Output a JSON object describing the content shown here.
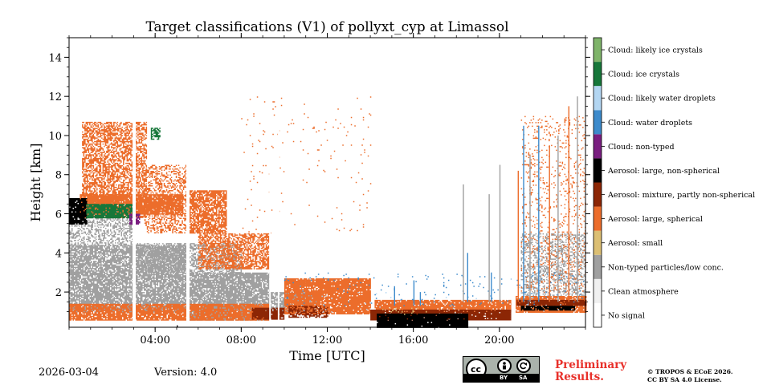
{
  "figure": {
    "title": "Target classifications (V1) of pollyxt_cyp at Limassol",
    "date": "2026-03-04",
    "version_label": "Version: 4.0",
    "preliminary_text": "Preliminary Results.",
    "copyright_lines": [
      "© TROPOS & ECoE 2026.",
      "CC BY SA 4.0 License."
    ],
    "license_badge": {
      "icons": [
        "cc-icon",
        "by-icon",
        "sa-icon"
      ],
      "cc_text": "cc",
      "labels": [
        "BY",
        "SA"
      ]
    }
  },
  "chart_data": {
    "type": "heatmap",
    "title": "Target classifications (V1) of pollyxt_cyp at Limassol",
    "xlabel": "Time [UTC]",
    "ylabel": "Height [km]",
    "xlim_hours": [
      0,
      24
    ],
    "ylim_km": [
      0.2,
      15
    ],
    "x_ticks": [
      {
        "hour": 4,
        "label": "04:00"
      },
      {
        "hour": 8,
        "label": "08:00"
      },
      {
        "hour": 12,
        "label": "12:00"
      },
      {
        "hour": 16,
        "label": "16:00"
      },
      {
        "hour": 20,
        "label": "20:00"
      }
    ],
    "y_ticks": [
      2,
      4,
      6,
      8,
      10,
      12,
      14
    ],
    "classes": [
      {
        "id": 0,
        "label": "No signal",
        "color": "#ffffff"
      },
      {
        "id": 1,
        "label": "Clean atmosphere",
        "color": "#f0f0f0"
      },
      {
        "id": 2,
        "label": "Non-typed particles/low conc.",
        "color": "#a0a0a0"
      },
      {
        "id": 3,
        "label": "Aerosol: small",
        "color": "#dcbf73"
      },
      {
        "id": 4,
        "label": "Aerosol: large, spherical",
        "color": "#ec6d2b"
      },
      {
        "id": 5,
        "label": "Aerosol: mixture, partly non-spherical",
        "color": "#8c2605"
      },
      {
        "id": 6,
        "label": "Aerosol: large, non-spherical",
        "color": "#000000"
      },
      {
        "id": 7,
        "label": "Cloud: non-typed",
        "color": "#7a1e80"
      },
      {
        "id": 8,
        "label": "Cloud: water droplets",
        "color": "#3d8bcc"
      },
      {
        "id": 9,
        "label": "Cloud: likely water droplets",
        "color": "#b3d6f2"
      },
      {
        "id": 10,
        "label": "Cloud: ice crystals",
        "color": "#17773a"
      },
      {
        "id": 11,
        "label": "Cloud: likely ice crystals",
        "color": "#7fb46a"
      }
    ],
    "data_gaps_hours": [
      [
        2.95,
        3.1
      ],
      [
        5.45,
        5.6
      ],
      [
        9.3,
        9.35
      ],
      [
        9.7,
        9.75
      ],
      [
        20.55,
        20.75
      ]
    ],
    "regions": [
      {
        "cls": 2,
        "t": [
          0,
          5.45
        ],
        "h": [
          1.0,
          4.4
        ],
        "d": 0.8
      },
      {
        "cls": 2,
        "t": [
          5.6,
          9.3
        ],
        "h": [
          0.6,
          3.0
        ],
        "d": 0.85
      },
      {
        "cls": 2,
        "t": [
          9.3,
          11.5
        ],
        "h": [
          1.0,
          2.0
        ],
        "d": 0.8
      },
      {
        "cls": 2,
        "t": [
          21.0,
          24
        ],
        "h": [
          1.8,
          5.0
        ],
        "d": 0.35
      },
      {
        "cls": 2,
        "t": [
          0,
          3.0
        ],
        "h": [
          4.4,
          6.2
        ],
        "d": 0.45
      },
      {
        "cls": 2,
        "t": [
          3.1,
          8.0
        ],
        "h": [
          3.0,
          4.5
        ],
        "d": 0.5
      },
      {
        "cls": 4,
        "t": [
          0.6,
          3.6
        ],
        "h": [
          5.8,
          10.7
        ],
        "d": 0.6
      },
      {
        "cls": 4,
        "t": [
          3.5,
          5.45
        ],
        "h": [
          5.0,
          8.5
        ],
        "d": 0.4
      },
      {
        "cls": 4,
        "t": [
          5.6,
          7.3
        ],
        "h": [
          5.0,
          7.2
        ],
        "d": 0.75
      },
      {
        "cls": 4,
        "t": [
          6.0,
          9.3
        ],
        "h": [
          3.2,
          5.0
        ],
        "d": 0.65
      },
      {
        "cls": 4,
        "t": [
          0.5,
          5.3
        ],
        "h": [
          6.0,
          7.0
        ],
        "d": 0.9
      },
      {
        "cls": 4,
        "t": [
          0,
          9.3
        ],
        "h": [
          0.6,
          1.4
        ],
        "d": 0.85
      },
      {
        "cls": 4,
        "t": [
          10.0,
          14.0
        ],
        "h": [
          0.9,
          2.7
        ],
        "d": 0.92
      },
      {
        "cls": 4,
        "t": [
          14.2,
          20.55
        ],
        "h": [
          1.0,
          1.6
        ],
        "d": 0.9
      },
      {
        "cls": 4,
        "t": [
          20.75,
          24
        ],
        "h": [
          1.0,
          1.8
        ],
        "d": 0.85
      },
      {
        "cls": 4,
        "t": [
          21.0,
          24
        ],
        "h": [
          2.0,
          11.0
        ],
        "d": 0.1
      },
      {
        "cls": 4,
        "t": [
          8.0,
          14.0
        ],
        "h": [
          5.0,
          12.0
        ],
        "d": 0.012
      },
      {
        "cls": 5,
        "t": [
          8.5,
          10.0
        ],
        "h": [
          0.6,
          1.2
        ],
        "d": 0.9
      },
      {
        "cls": 5,
        "t": [
          10.2,
          12.0
        ],
        "h": [
          0.7,
          1.3
        ],
        "d": 0.6
      },
      {
        "cls": 5,
        "t": [
          14.0,
          20.5
        ],
        "h": [
          0.6,
          1.1
        ],
        "d": 0.95
      },
      {
        "cls": 5,
        "t": [
          20.8,
          24
        ],
        "h": [
          1.3,
          1.6
        ],
        "d": 0.9
      },
      {
        "cls": 6,
        "t": [
          14.3,
          18.5
        ],
        "h": [
          0.2,
          0.9
        ],
        "d": 0.98
      },
      {
        "cls": 6,
        "t": [
          21.0,
          23.5
        ],
        "h": [
          1.1,
          1.3
        ],
        "d": 0.9
      },
      {
        "cls": 6,
        "t": [
          0,
          0.8
        ],
        "h": [
          5.5,
          6.8
        ],
        "d": 0.9
      },
      {
        "cls": 10,
        "t": [
          0.8,
          3.0
        ],
        "h": [
          5.8,
          6.5
        ],
        "d": 0.85
      },
      {
        "cls": 10,
        "t": [
          3.8,
          4.2
        ],
        "h": [
          9.8,
          10.4
        ],
        "d": 0.7
      },
      {
        "cls": 7,
        "t": [
          2.8,
          3.3
        ],
        "h": [
          5.5,
          6.0
        ],
        "d": 0.8
      },
      {
        "cls": 8,
        "t": [
          10.0,
          24
        ],
        "h": [
          1.3,
          3.0
        ],
        "d": 0.02
      },
      {
        "cls": 9,
        "t": [
          10.0,
          24
        ],
        "h": [
          1.0,
          2.0
        ],
        "d": 0.01
      },
      {
        "cls": 3,
        "t": [
          14.5,
          17.0
        ],
        "h": [
          0.8,
          1.2
        ],
        "d": 0.05
      }
    ],
    "vertical_streaks": [
      {
        "cls": 2,
        "t": 18.3,
        "h": [
          1.5,
          7.5
        ]
      },
      {
        "cls": 8,
        "t": 18.5,
        "h": [
          1.5,
          4.0
        ]
      },
      {
        "cls": 2,
        "t": 19.5,
        "h": [
          1.5,
          7.0
        ]
      },
      {
        "cls": 8,
        "t": 19.6,
        "h": [
          1.5,
          3.0
        ]
      },
      {
        "cls": 2,
        "t": 20.0,
        "h": [
          1.5,
          8.5
        ]
      },
      {
        "cls": 4,
        "t": 20.85,
        "h": [
          1.5,
          8.2
        ]
      },
      {
        "cls": 8,
        "t": 21.1,
        "h": [
          1.5,
          10.5
        ]
      },
      {
        "cls": 2,
        "t": 21.4,
        "h": [
          1.5,
          9.0
        ]
      },
      {
        "cls": 8,
        "t": 21.8,
        "h": [
          1.5,
          10.5
        ]
      },
      {
        "cls": 4,
        "t": 22.3,
        "h": [
          1.5,
          9.5
        ]
      },
      {
        "cls": 2,
        "t": 22.7,
        "h": [
          1.5,
          10.0
        ]
      },
      {
        "cls": 4,
        "t": 23.2,
        "h": [
          1.5,
          11.5
        ]
      },
      {
        "cls": 2,
        "t": 23.6,
        "h": [
          1.5,
          12.0
        ]
      },
      {
        "cls": 8,
        "t": 15.1,
        "h": [
          1.3,
          2.3
        ]
      },
      {
        "cls": 8,
        "t": 16.0,
        "h": [
          1.3,
          2.6
        ]
      },
      {
        "cls": 8,
        "t": 16.3,
        "h": [
          1.3,
          2.0
        ]
      },
      {
        "cls": 6,
        "t": 5.0,
        "h": [
          0.2,
          0.3
        ]
      }
    ]
  }
}
